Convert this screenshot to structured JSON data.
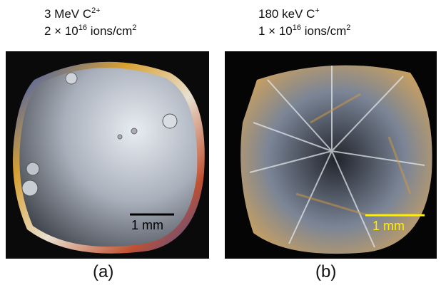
{
  "panels": [
    {
      "caption": [
        [
          {
            "text": "3 MeV C"
          },
          {
            "text": "2+",
            "sup": true
          }
        ],
        [
          {
            "text": "2 × 10"
          },
          {
            "text": "16",
            "sup": true
          },
          {
            "text": " ions/cm"
          },
          {
            "text": "2",
            "sup": true
          }
        ]
      ],
      "scale_bar": "1 mm",
      "label": "(a)"
    },
    {
      "caption": [
        [
          {
            "text": "180 keV C"
          },
          {
            "text": "+",
            "sup": true
          }
        ],
        [
          {
            "text": "1 × 10"
          },
          {
            "text": "16",
            "sup": true
          },
          {
            "text": " ions/cm"
          },
          {
            "text": "2",
            "sup": true
          }
        ]
      ],
      "scale_bar": "1 mm",
      "label": "(b)"
    }
  ]
}
